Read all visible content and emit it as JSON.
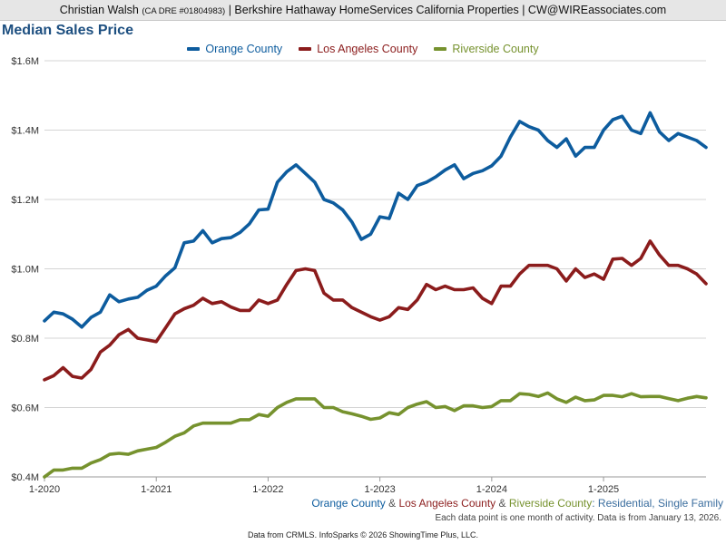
{
  "header": {
    "agent_name": "Christian Walsh",
    "license": "(CA DRE #01804983)",
    "rest": "| Berkshire Hathaway HomeServices California Properties | CW@WIREassociates.com"
  },
  "chart_data": {
    "type": "line",
    "title": "Median Sales Price",
    "x_unit": "month",
    "x_start": "2020-01",
    "x_end": "2025-12",
    "x_ticks": [
      "1-2020",
      "1-2021",
      "1-2022",
      "1-2023",
      "1-2024",
      "1-2025"
    ],
    "y_ticks": [
      "$0.4M",
      "$0.6M",
      "$0.8M",
      "$1.0M",
      "$1.2M",
      "$1.4M",
      "$1.6M"
    ],
    "ylim": [
      0.4,
      1.6
    ],
    "y_unit": "$M",
    "grid": "horizontal",
    "legend_position": "top-center",
    "series": [
      {
        "name": "Orange County",
        "color": "#0d5c9e",
        "values": [
          0.85,
          0.875,
          0.87,
          0.855,
          0.832,
          0.86,
          0.875,
          0.925,
          0.905,
          0.913,
          0.918,
          0.938,
          0.95,
          0.98,
          1.003,
          1.075,
          1.08,
          1.11,
          1.075,
          1.087,
          1.09,
          1.105,
          1.13,
          1.17,
          1.172,
          1.25,
          1.28,
          1.3,
          1.275,
          1.25,
          1.2,
          1.19,
          1.17,
          1.135,
          1.085,
          1.1,
          1.15,
          1.145,
          1.218,
          1.2,
          1.24,
          1.25,
          1.265,
          1.285,
          1.3,
          1.26,
          1.275,
          1.283,
          1.297,
          1.325,
          1.38,
          1.425,
          1.41,
          1.4,
          1.37,
          1.35,
          1.375,
          1.325,
          1.35,
          1.35,
          1.4,
          1.43,
          1.44,
          1.4,
          1.39,
          1.45,
          1.395,
          1.37,
          1.39,
          1.38,
          1.37,
          1.35
        ]
      },
      {
        "name": "Los Angeles County",
        "color": "#8b1c1c",
        "values": [
          0.68,
          0.692,
          0.715,
          0.69,
          0.685,
          0.71,
          0.76,
          0.78,
          0.81,
          0.825,
          0.8,
          0.795,
          0.79,
          0.83,
          0.87,
          0.885,
          0.895,
          0.915,
          0.9,
          0.905,
          0.89,
          0.88,
          0.88,
          0.91,
          0.9,
          0.91,
          0.955,
          0.995,
          1.0,
          0.995,
          0.93,
          0.91,
          0.91,
          0.888,
          0.875,
          0.862,
          0.852,
          0.862,
          0.888,
          0.883,
          0.91,
          0.955,
          0.94,
          0.95,
          0.94,
          0.94,
          0.945,
          0.915,
          0.9,
          0.95,
          0.95,
          0.985,
          1.01,
          1.01,
          1.01,
          1.0,
          0.965,
          1.0,
          0.975,
          0.985,
          0.97,
          1.028,
          1.03,
          1.01,
          1.03,
          1.08,
          1.04,
          1.01,
          1.01,
          1.0,
          0.985,
          0.957
        ]
      },
      {
        "name": "Riverside County",
        "color": "#76922e",
        "values": [
          0.4,
          0.42,
          0.42,
          0.425,
          0.425,
          0.44,
          0.45,
          0.465,
          0.468,
          0.465,
          0.475,
          0.48,
          0.485,
          0.5,
          0.517,
          0.527,
          0.547,
          0.555,
          0.555,
          0.555,
          0.555,
          0.565,
          0.565,
          0.58,
          0.575,
          0.6,
          0.615,
          0.625,
          0.625,
          0.625,
          0.6,
          0.6,
          0.588,
          0.582,
          0.575,
          0.566,
          0.57,
          0.585,
          0.58,
          0.6,
          0.61,
          0.617,
          0.6,
          0.603,
          0.591,
          0.605,
          0.605,
          0.6,
          0.603,
          0.62,
          0.62,
          0.64,
          0.638,
          0.632,
          0.642,
          0.625,
          0.615,
          0.63,
          0.62,
          0.622,
          0.635,
          0.635,
          0.631,
          0.64,
          0.631,
          0.632,
          0.632,
          0.626,
          0.62,
          0.627,
          0.632,
          0.628
        ]
      }
    ],
    "subtitle": {
      "part1": "Orange County",
      "sep1": "&",
      "part2": "Los Angeles County",
      "sep2": "&",
      "part3": "Riverside County",
      "part4": ": Residential, Single Family"
    },
    "footnote": "Each data point is one month of activity. Data is from January 13, 2026.",
    "credit": "Data from CRMLS. InfoSparks © 2026 ShowingTime Plus, LLC."
  }
}
